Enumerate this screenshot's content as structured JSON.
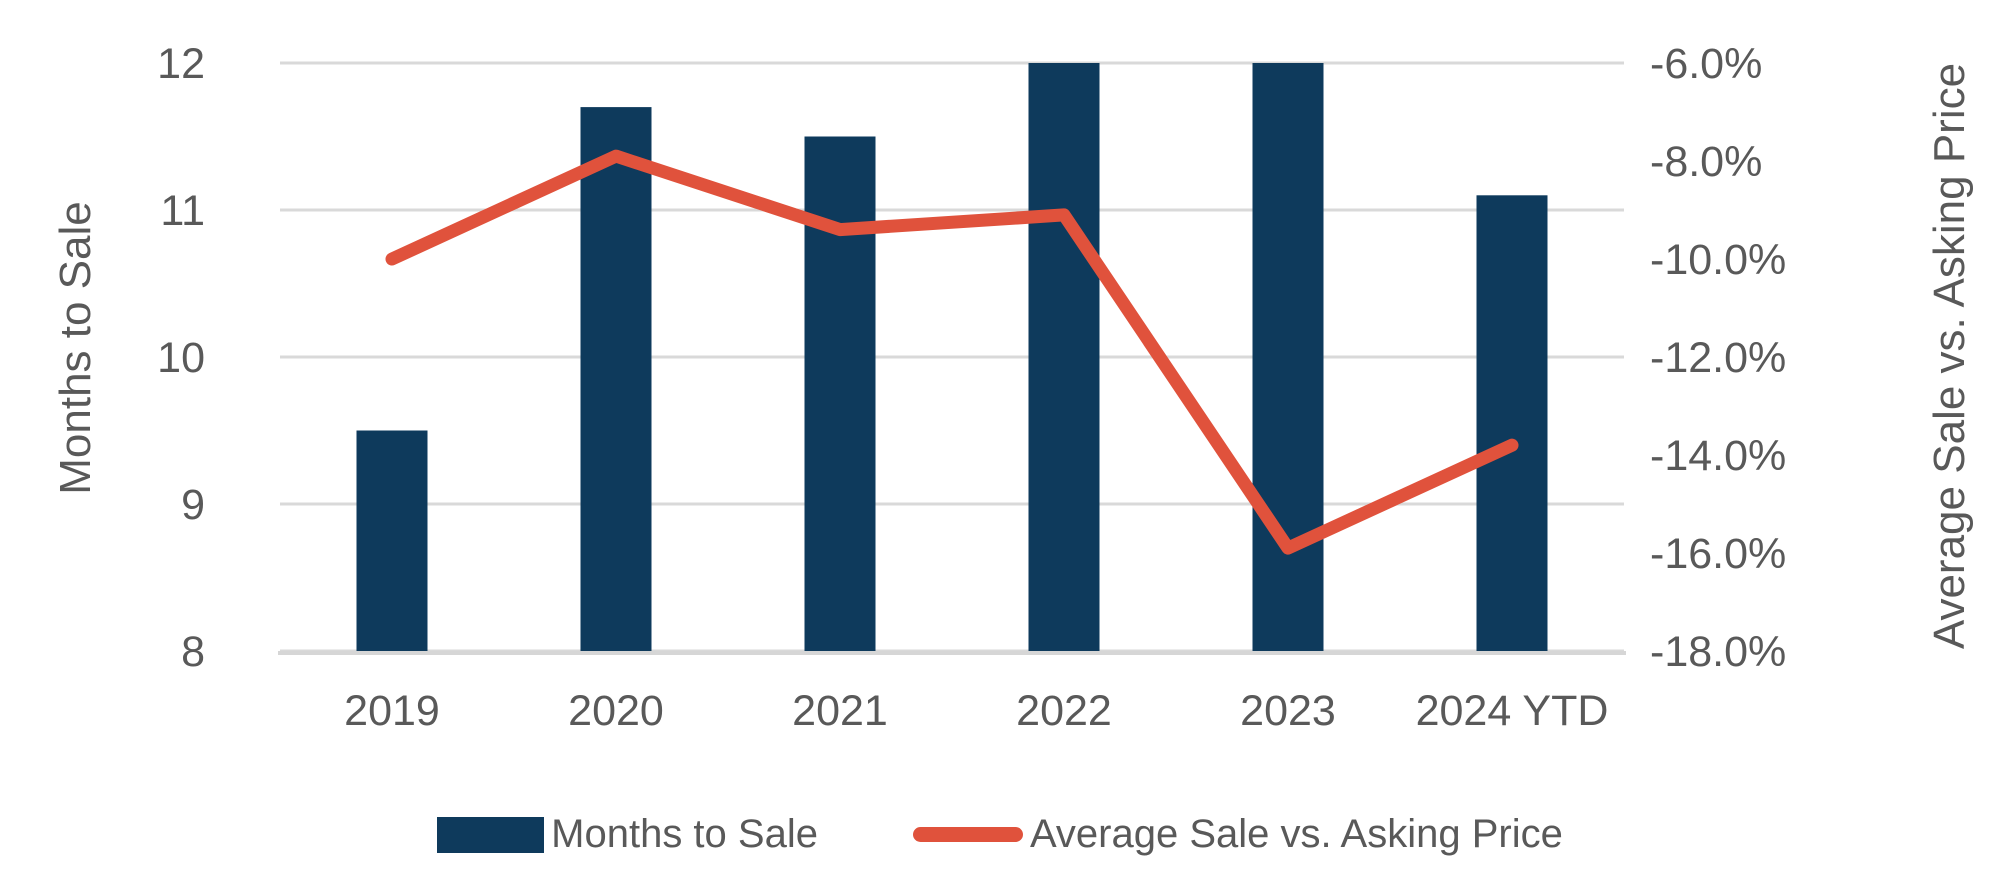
{
  "chart_data": {
    "type": "combo",
    "categories": [
      "2019",
      "2020",
      "2021",
      "2022",
      "2023",
      "2024 YTD"
    ],
    "series": [
      {
        "name": "Months to Sale",
        "type": "bar",
        "axis": "left",
        "values": [
          9.5,
          11.7,
          11.5,
          12.0,
          12.0,
          11.1
        ],
        "color": "#0E3A5C"
      },
      {
        "name": "Average Sale vs. Asking Price",
        "type": "line",
        "axis": "right",
        "values": [
          -10.0,
          -7.9,
          -9.4,
          -9.1,
          -15.9,
          -13.8
        ],
        "color": "#E0523C"
      }
    ],
    "left_axis": {
      "title": "Months to Sale",
      "min": 8,
      "max": 12,
      "ticks": [
        12,
        11,
        10,
        9,
        8
      ]
    },
    "right_axis": {
      "title": "Average Sale vs. Asking Price",
      "min": -18,
      "max": -6,
      "ticks": [
        -6,
        -8,
        -10,
        -12,
        -14,
        -16,
        -18
      ],
      "tick_format": "one-decimal-percent"
    },
    "grid": true,
    "legend_position": "bottom"
  },
  "legend": {
    "items": [
      {
        "label": "Months to Sale",
        "marker": "rect",
        "color": "#0E3A5C"
      },
      {
        "label": "Average Sale vs. Asking Price",
        "marker": "line",
        "color": "#E0523C"
      }
    ]
  },
  "colors": {
    "bar": "#0E3A5C",
    "line": "#E0523C",
    "gridline": "#D9D9D9",
    "axis_line": "#D6D6D6",
    "text": "#595959"
  }
}
